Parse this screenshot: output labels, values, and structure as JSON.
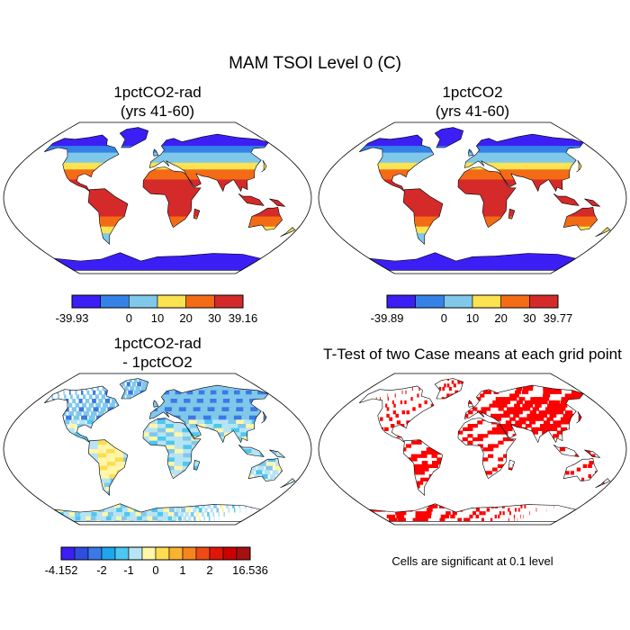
{
  "title": "MAM TSOI Level 0 (C)",
  "panels": [
    {
      "title_lines": [
        "1pctCO2-rad",
        "(yrs 41-60)"
      ],
      "type": "field",
      "colorbar": {
        "colors": [
          "#3b1ff5",
          "#3582e6",
          "#80c8ea",
          "#fbe351",
          "#f46b16",
          "#d52a2a"
        ],
        "labels": [
          "-39.93",
          "0",
          "10",
          "20",
          "30",
          "39.16"
        ]
      }
    },
    {
      "title_lines": [
        "1pctCO2",
        "(yrs 41-60)"
      ],
      "type": "field",
      "colorbar": {
        "colors": [
          "#3b1ff5",
          "#3582e6",
          "#80c8ea",
          "#fbe351",
          "#f46b16",
          "#d52a2a"
        ],
        "labels": [
          "-39.89",
          "0",
          "10",
          "20",
          "30",
          "39.77"
        ]
      }
    },
    {
      "title_lines": [
        "1pctCO2-rad",
        "- 1pctCO2"
      ],
      "type": "difference",
      "colorbar": {
        "colors": [
          "#3b1ff5",
          "#2e4ee0",
          "#3a79e6",
          "#1fa6ee",
          "#4dc6f2",
          "#b6e4f4",
          "#fff6a8",
          "#fddc52",
          "#fbb232",
          "#f7851e",
          "#ee4a14",
          "#e2150b",
          "#cc0000",
          "#a61010"
        ],
        "labels": [
          "-4.152",
          "-2",
          "-1",
          "0",
          "1",
          "2",
          "16.536"
        ]
      }
    },
    {
      "title_lines": [
        "T-Test of two Case means at each grid point"
      ],
      "type": "ttest",
      "note": "Cells are significant at 0.1 level"
    }
  ],
  "colors": {
    "significance": "#ff0000",
    "coastline": "#000000",
    "background": "#ffffff"
  }
}
